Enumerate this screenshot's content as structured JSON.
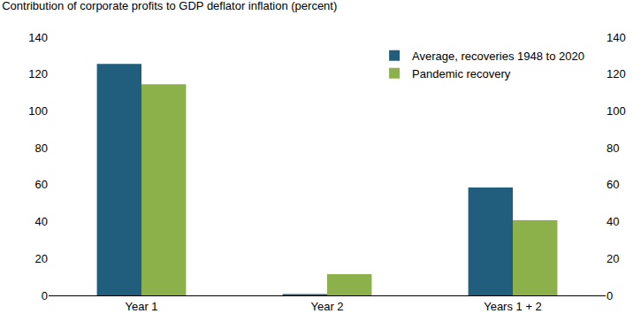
{
  "chart_data": {
    "type": "bar",
    "title": "Contribution of corporate profits to GDP deflator inflation (percent)",
    "categories": [
      "Year 1",
      "Year 2",
      "Years 1 + 2"
    ],
    "series": [
      {
        "name": "Average, recoveries 1948 to 2020",
        "color": "#215e7d",
        "values": [
          125.5,
          0.7,
          58.5
        ]
      },
      {
        "name": "Pandemic recovery",
        "color": "#8cb04a",
        "values": [
          114.5,
          11.5,
          40.7
        ]
      }
    ],
    "ylim": [
      0,
      140
    ],
    "yticks": [
      0,
      20,
      40,
      60,
      80,
      100,
      120,
      140
    ],
    "y2lim": [
      0,
      140
    ],
    "y2ticks": [
      0,
      20,
      40,
      60,
      80,
      100,
      120,
      140
    ],
    "grid": false,
    "legend": "upper right",
    "data_labels": false
  }
}
